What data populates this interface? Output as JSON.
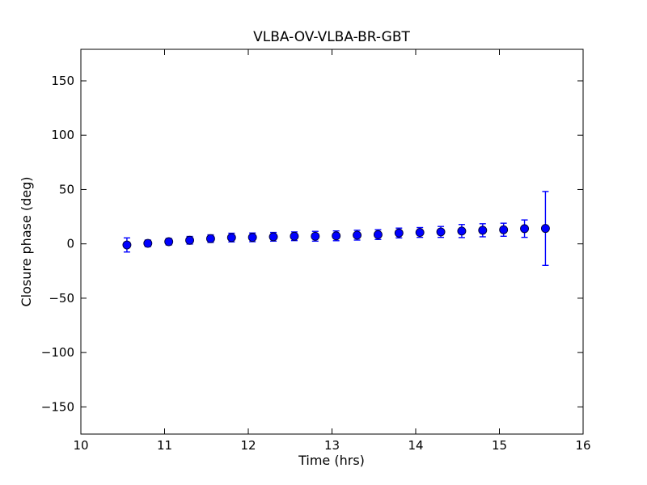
{
  "chart_data": {
    "type": "scatter",
    "subtype": "errorbar",
    "title": "VLBA-OV-VLBA-BR-GBT",
    "xlabel": "Time (hrs)",
    "ylabel": "Closure phase (deg)",
    "xlim": [
      10,
      16
    ],
    "ylim": [
      -175,
      179
    ],
    "xticks": [
      10,
      11,
      12,
      13,
      14,
      15,
      16
    ],
    "xtick_labels": [
      "10",
      "11",
      "12",
      "13",
      "14",
      "15",
      "16"
    ],
    "yticks": [
      -150,
      -100,
      -50,
      0,
      50,
      100,
      150
    ],
    "ytick_labels": [
      "−150",
      "−100",
      "−50",
      "0",
      "50",
      "100",
      "150"
    ],
    "grid": false,
    "legend": "none",
    "colors": {
      "marker_fill": "#0000ff",
      "marker_edge": "#000033",
      "error_bar": "#0000ff",
      "spine": "#000000",
      "background": "#ffffff"
    },
    "series": [
      {
        "name": "closure phase",
        "x": [
          10.55,
          10.8,
          11.05,
          11.3,
          11.55,
          11.8,
          12.05,
          12.3,
          12.55,
          12.8,
          13.05,
          13.3,
          13.55,
          13.8,
          14.05,
          14.3,
          14.55,
          14.8,
          15.05,
          15.3,
          15.55
        ],
        "y": [
          -1.0,
          0.5,
          2.0,
          3.3,
          4.8,
          5.8,
          6.0,
          6.5,
          7.0,
          7.0,
          7.4,
          8.0,
          8.5,
          10.0,
          10.5,
          11.0,
          11.8,
          12.5,
          13.0,
          14.0,
          14.2
        ],
        "yerr": [
          6.5,
          3.0,
          3.0,
          3.5,
          3.5,
          4.0,
          4.0,
          4.0,
          4.0,
          4.5,
          4.5,
          4.5,
          4.5,
          4.5,
          4.5,
          5.0,
          6.0,
          6.0,
          6.0,
          8.0,
          34.0
        ]
      }
    ]
  }
}
